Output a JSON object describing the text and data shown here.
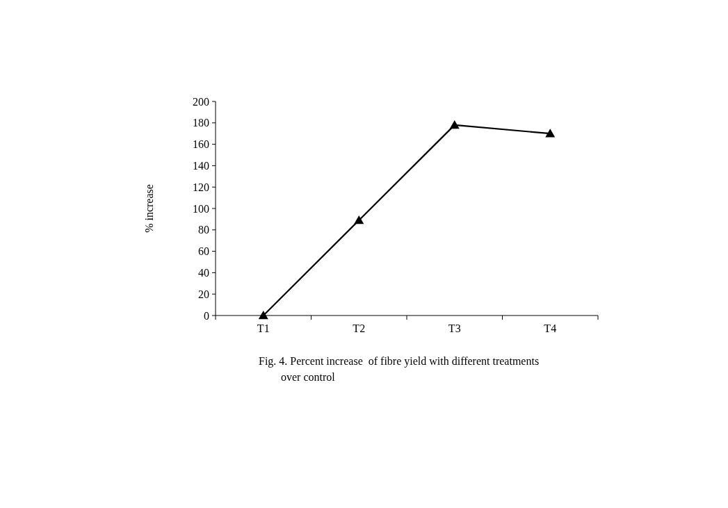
{
  "chart_data": {
    "type": "line",
    "ylabel": "% increase",
    "categories": [
      "T1",
      "T2",
      "T3",
      "T4"
    ],
    "series": [
      {
        "color": "#000000",
        "values": [
          0,
          89,
          178,
          170
        ]
      }
    ],
    "ylim": [
      0,
      200
    ],
    "yticks": [
      0,
      20,
      40,
      60,
      80,
      100,
      120,
      140,
      160,
      180,
      200
    ],
    "grid": false,
    "marker": "triangle",
    "line_style": "solid",
    "annotations": [
      "Fig. 4. Percent increase  of fibre yield with different treatments over control"
    ]
  }
}
